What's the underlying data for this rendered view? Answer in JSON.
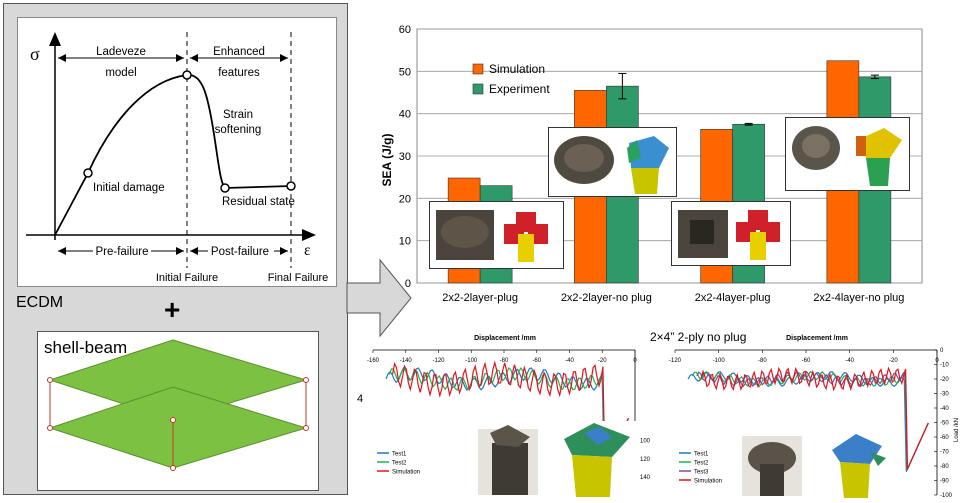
{
  "stress_diagram": {
    "y_symbol": "σ",
    "x_symbol": "ε",
    "region_labels": [
      "Ladeveze",
      "model",
      "Enhanced",
      "features",
      "Strain",
      "softening"
    ],
    "point_labels": [
      "Initial damage",
      "Residual state"
    ],
    "phase_labels": [
      "Pre-failure",
      "Post-failure"
    ],
    "bottom_labels": [
      "Initial Failure",
      "Final Failure"
    ]
  },
  "ecdm_label": "ECDM",
  "plus_sign": "+",
  "shell_label": "shell-beam",
  "chart_data": [
    {
      "type": "bar",
      "categories": [
        "2x2-2layer-plug",
        "2x2-2layer-no plug",
        "2x2-4layer-plug",
        "2x2-4layer-no plug"
      ],
      "series": [
        {
          "name": "Simulation",
          "color": "#ff6600",
          "values": [
            24.8,
            45.5,
            36.3,
            52.5
          ]
        },
        {
          "name": "Experiment",
          "color": "#2e9a6a",
          "values": [
            23.0,
            46.5,
            37.5,
            48.7
          ],
          "errors": [
            0,
            3.0,
            0.2,
            0.4
          ]
        }
      ],
      "ylabel": "SEA (J/g)",
      "ylim": [
        0,
        60
      ],
      "yticks": [
        "0",
        "10",
        "20",
        "30",
        "40",
        "50",
        "60"
      ],
      "grid": true,
      "legend": "top-left"
    },
    {
      "type": "line",
      "xlabel": "Displacement /mm",
      "xlim": [
        -160,
        0
      ],
      "xticks": [
        "-160",
        "-140",
        "-120",
        "-100",
        "-80",
        "-60",
        "-40",
        "-20",
        "0"
      ],
      "ylim": [
        -160,
        0
      ],
      "yticks": [
        "-140",
        "-120",
        "-100"
      ],
      "side_label": "4",
      "series": [
        {
          "name": "Test1",
          "color": "#1f77c4"
        },
        {
          "name": "Test2",
          "color": "#22b24c"
        },
        {
          "name": "Simulation",
          "color": "#e0141e"
        }
      ]
    },
    {
      "type": "line",
      "title": "2×4” 2-ply no plug",
      "xlabel": "Displacement /mm",
      "xlim": [
        -120,
        0
      ],
      "xticks": [
        "-120",
        "-100",
        "-80",
        "-60",
        "-40",
        "-20",
        "0"
      ],
      "ylim": [
        -100,
        0
      ],
      "yticks": [
        "0",
        "-10",
        "-20",
        "-30",
        "-40",
        "-50",
        "-60",
        "-70",
        "-80",
        "-90",
        "-100"
      ],
      "ylabel": "Load /kN",
      "series": [
        {
          "name": "Test1",
          "color": "#1f77c4"
        },
        {
          "name": "Test2",
          "color": "#22b24c"
        },
        {
          "name": "Test3",
          "color": "#7a4f9e"
        },
        {
          "name": "Simulation",
          "color": "#e0141e"
        }
      ]
    }
  ]
}
